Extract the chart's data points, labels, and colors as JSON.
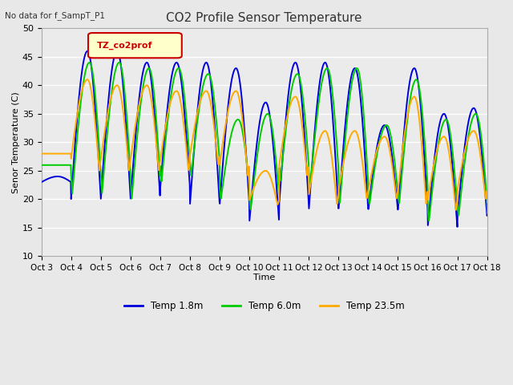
{
  "title": "CO2 Profile Sensor Temperature",
  "subtitle": "No data for f_SampT_P1",
  "ylabel": "Senor Temperature (C)",
  "xlabel": "Time",
  "ylim": [
    10,
    50
  ],
  "bg_color": "#e8e8e8",
  "plot_bg_color": "#ebebeb",
  "grid_color": "#ffffff",
  "legend_label": "TZ_co2prof",
  "legend_box_color": "#ffffcc",
  "legend_border_color": "#cc0000",
  "series": {
    "blue": {
      "label": "Temp 1.8m",
      "color": "#0000dd",
      "lw": 1.4
    },
    "green": {
      "label": "Temp 6.0m",
      "color": "#00cc00",
      "lw": 1.4
    },
    "orange": {
      "label": "Temp 23.5m",
      "color": "#ffaa00",
      "lw": 1.4
    }
  },
  "xtick_labels": [
    "Oct 3",
    "Oct 4",
    "Oct 5",
    "Oct 6",
    "Oct 7",
    "Oct 8",
    "Oct 9",
    "Oct 10",
    "Oct 11",
    "Oct 12",
    "Oct 13",
    "Oct 14",
    "Oct 15",
    "Oct 16",
    "Oct 17",
    "Oct 18"
  ],
  "ytick_labels": [
    "10",
    "15",
    "20",
    "25",
    "30",
    "35",
    "40",
    "45",
    "50"
  ],
  "yticks": [
    10,
    15,
    20,
    25,
    30,
    35,
    40,
    45,
    50
  ],
  "blue_max": [
    24,
    46,
    46,
    44,
    44,
    44,
    43,
    37,
    44,
    44,
    43,
    33,
    43,
    35,
    36,
    29
  ],
  "blue_min": [
    23,
    20,
    20,
    20,
    22,
    19,
    19,
    16,
    19,
    18,
    18,
    18,
    18,
    15,
    17,
    17
  ],
  "green_max": [
    26,
    44,
    44,
    43,
    43,
    42,
    34,
    35,
    42,
    43,
    43,
    33,
    41,
    34,
    35,
    22
  ],
  "green_min": [
    26,
    21,
    21,
    20,
    23,
    24,
    20,
    18,
    23,
    22,
    19,
    19,
    19,
    16,
    17,
    17
  ],
  "orange_max": [
    28,
    41,
    40,
    40,
    39,
    39,
    39,
    25,
    38,
    32,
    32,
    31,
    38,
    31,
    32,
    22
  ],
  "orange_min": [
    28,
    25,
    25,
    25,
    25,
    26,
    24,
    19,
    24,
    19,
    20,
    20,
    19,
    18,
    20,
    19
  ]
}
